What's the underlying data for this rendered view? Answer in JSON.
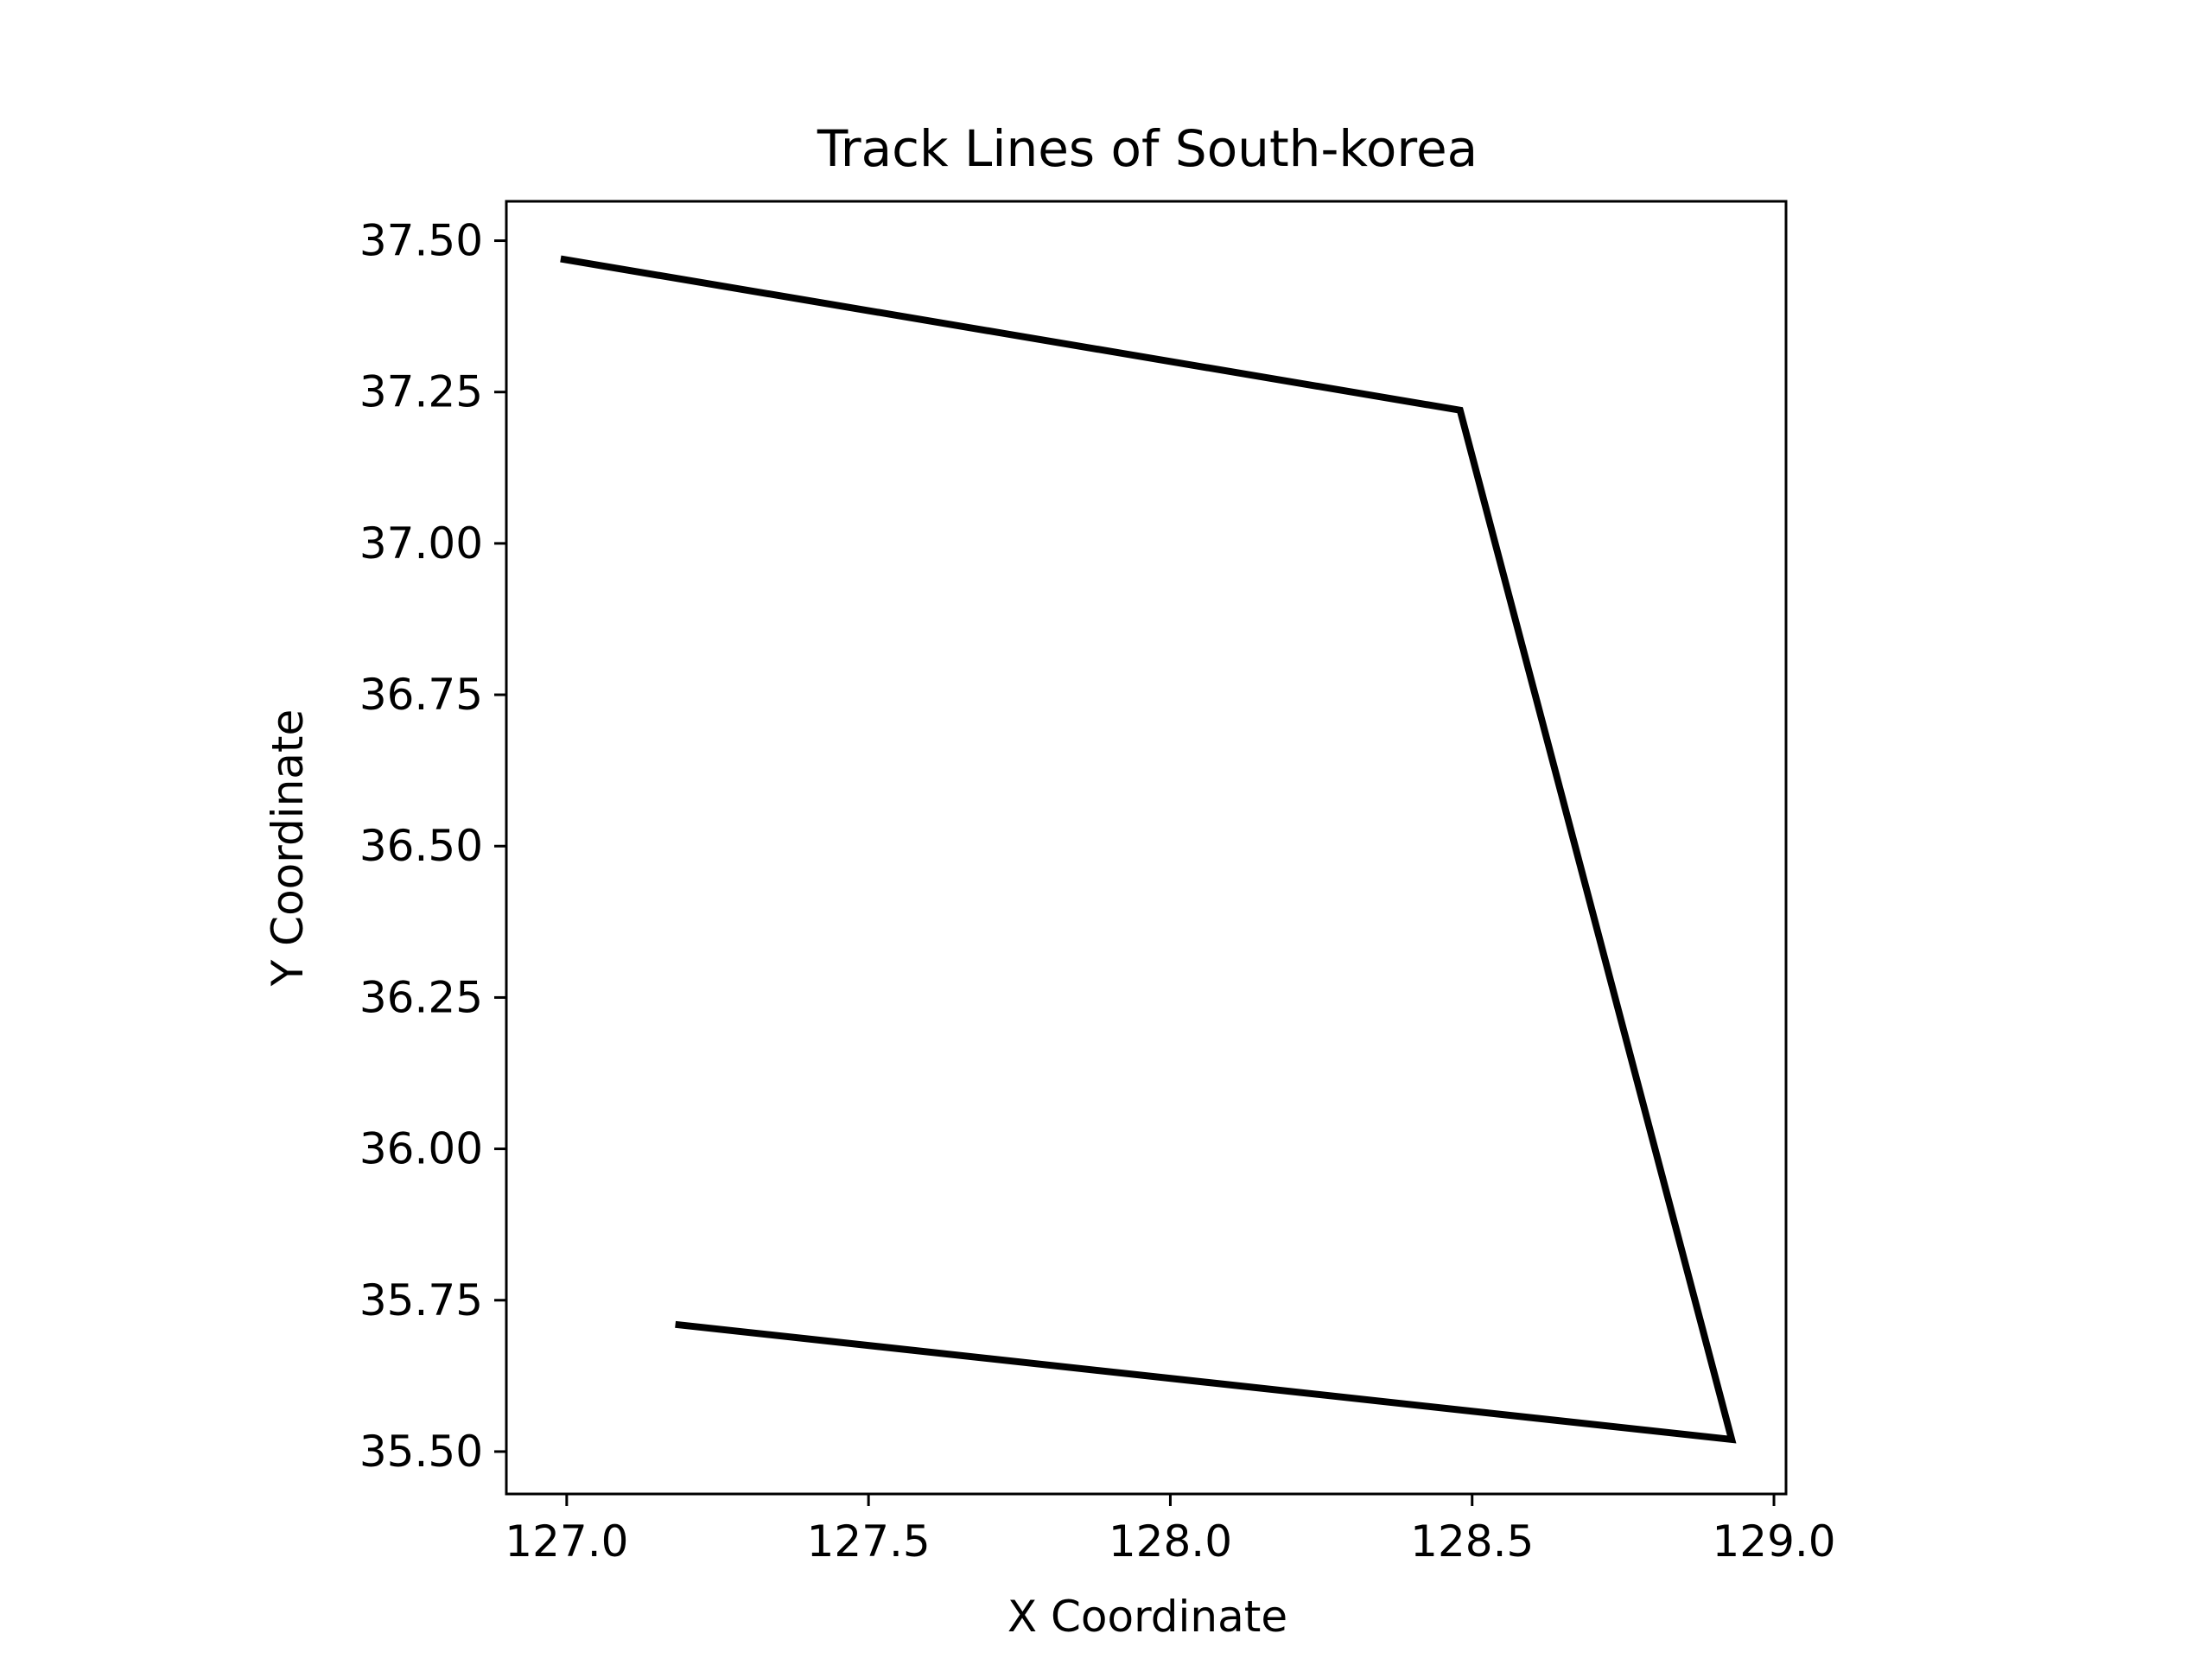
{
  "chart_data": {
    "type": "line",
    "title": "Track Lines of South-korea",
    "xlabel": "X Coordinate",
    "ylabel": "Y Coordinate",
    "xlim": [
      126.9,
      129.02
    ],
    "ylim": [
      35.43,
      37.565
    ],
    "x_ticks": [
      127.0,
      127.5,
      128.0,
      128.5,
      129.0
    ],
    "x_tick_labels": [
      "127.0",
      "127.5",
      "128.0",
      "128.5",
      "129.0"
    ],
    "y_ticks": [
      35.5,
      35.75,
      36.0,
      36.25,
      36.5,
      36.75,
      37.0,
      37.25,
      37.5
    ],
    "y_tick_labels": [
      "35.50",
      "35.75",
      "36.00",
      "36.25",
      "36.50",
      "36.75",
      "37.00",
      "37.25",
      "37.50"
    ],
    "grid": false,
    "series": [
      {
        "color": "#000000",
        "x": [
          126.99,
          128.48,
          128.93,
          127.18
        ],
        "y": [
          37.47,
          37.22,
          35.52,
          35.71
        ]
      }
    ]
  }
}
